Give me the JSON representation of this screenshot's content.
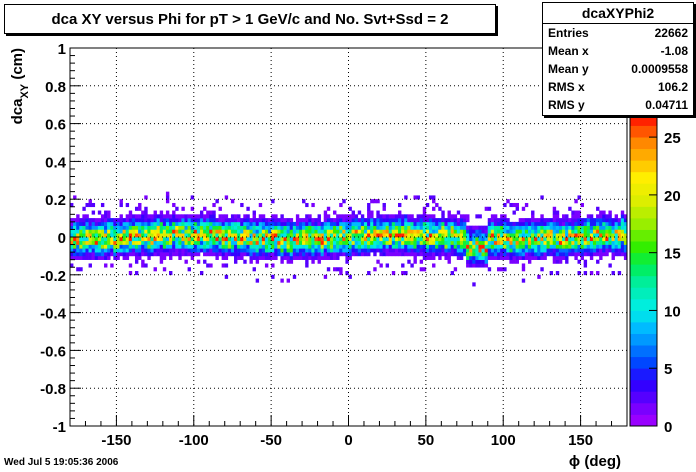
{
  "title": "dca XY versus Phi for pT > 1 GeV/c and No. Svt+Ssd = 2",
  "stats": {
    "name": "dcaXYPhi2",
    "rows": [
      {
        "label": "Entries",
        "value": "22662"
      },
      {
        "label": "Mean x",
        "value": "-1.08"
      },
      {
        "label": "Mean y",
        "value": "0.0009558"
      },
      {
        "label": "RMS x",
        "value": "106.2"
      },
      {
        "label": "RMS y",
        "value": "0.04711"
      }
    ]
  },
  "timestamp": "Wed Jul  5 19:05:36 2006",
  "chart_data": {
    "type": "heatmap",
    "xlabel": "ϕ (deg)",
    "ylabel_main": "dca",
    "ylabel_sub": "XY",
    "ylabel_unit": " (cm)",
    "xlim": [
      -180,
      180
    ],
    "ylim": [
      -1,
      1
    ],
    "zlim": [
      0,
      27
    ],
    "grid": true,
    "x_ticks": [
      "-150",
      "-100",
      "-50",
      "0",
      "50",
      "100",
      "150"
    ],
    "x_tick_values": [
      -150,
      -100,
      -50,
      0,
      50,
      100,
      150
    ],
    "y_ticks": [
      "-1",
      "-0.8",
      "-0.6",
      "-0.4",
      "-0.2",
      "0",
      "0.2",
      "0.4",
      "0.6",
      "0.8",
      "1"
    ],
    "y_tick_values": [
      -1,
      -0.8,
      -0.6,
      -0.4,
      -0.2,
      0,
      0.2,
      0.4,
      0.6,
      0.8,
      1
    ],
    "colorbar_ticks": [
      "0",
      "5",
      "10",
      "15",
      "20",
      "25"
    ],
    "colorbar_tick_values": [
      0,
      5,
      10,
      15,
      20,
      25
    ],
    "palette": [
      "#9900ff",
      "#7a00ff",
      "#5500ff",
      "#3300ff",
      "#1a1aff",
      "#0047ff",
      "#0070ff",
      "#0099ff",
      "#00bbff",
      "#00ddee",
      "#00eedd",
      "#00eebb",
      "#00ee99",
      "#00ee66",
      "#11ee33",
      "#33ee00",
      "#66ee00",
      "#99ee00",
      "#bbee00",
      "#ddee00",
      "#eeee00",
      "#ffee00",
      "#ffcc00",
      "#ffaa00",
      "#ff8800",
      "#ff5500",
      "#ff2200"
    ],
    "x_bins": 180,
    "y_bins": 100,
    "band_center_y": 0.0009558,
    "band_rms_y": 0.04711,
    "peak_count": 26
  }
}
